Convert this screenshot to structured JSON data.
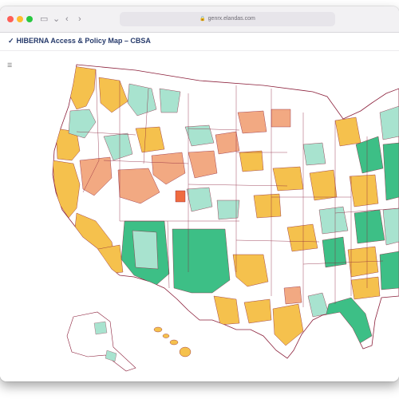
{
  "browser": {
    "url": "genrx.elandas.com",
    "icons": [
      "sidebar-icon",
      "back-icon",
      "forward-icon",
      "lock-icon",
      "extension-icon"
    ]
  },
  "app": {
    "title": "HIBERNA Access & Policy Map – CBSA",
    "title_mark": "✓",
    "layers_icon": "layers-icon"
  },
  "legend_colors": {
    "light_teal": "#a8e3cf",
    "green": "#3dbf86",
    "yellow": "#f5c14d",
    "salmon": "#f2a982",
    "orange_red": "#ef6b3f",
    "outline": "#8b1f3a"
  }
}
